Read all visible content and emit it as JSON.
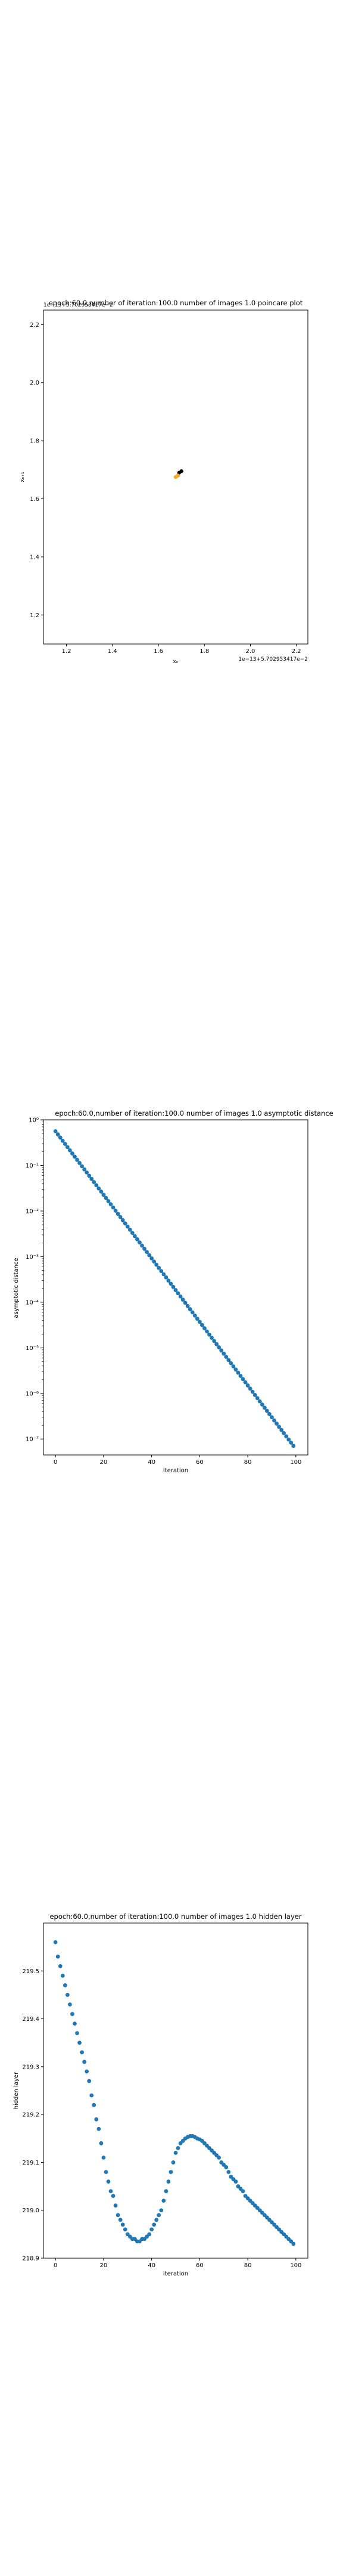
{
  "chart_data": [
    {
      "type": "scatter",
      "title": "epoch:60.0,number of iteration:100.0  number of images 1.0 poincare plot",
      "xlabel": "xₙ",
      "ylabel": "xₙ₊₁",
      "x_offset_text": "1e−13+5.702953417e−2",
      "y_offset_text": "1e−13+5.702953417e−2",
      "xlim": [
        1.1,
        2.25
      ],
      "ylim": [
        1.1,
        2.25
      ],
      "xticks": [
        1.2,
        1.4,
        1.6,
        1.8,
        2.0,
        2.2
      ],
      "yticks": [
        1.2,
        1.4,
        1.6,
        1.8,
        2.0,
        2.2
      ],
      "xtick_labels": [
        "1.2",
        "1.4",
        "1.6",
        "1.8",
        "2.0",
        "2.2"
      ],
      "ytick_labels": [
        "1.2",
        "1.4",
        "1.6",
        "1.8",
        "2.0",
        "2.2"
      ],
      "series": [
        {
          "color": "#000000",
          "x": [
            1.69,
            1.7
          ],
          "y": [
            1.69,
            1.695
          ]
        },
        {
          "color": "#f5a623",
          "x": [
            1.675,
            1.685
          ],
          "y": [
            1.675,
            1.68
          ]
        }
      ]
    },
    {
      "type": "scatter",
      "title": "epoch:60.0,number of iteration:100.0  number of images 1.0 asymptotic distance",
      "xlabel": "iteration",
      "ylabel": "asymptotic distance",
      "yscale": "log",
      "xlim": [
        -5,
        105
      ],
      "ylim_log10": [
        -7.35,
        0.0
      ],
      "xticks": [
        0,
        20,
        40,
        60,
        80,
        100
      ],
      "xtick_labels": [
        "0",
        "20",
        "40",
        "60",
        "80",
        "100"
      ],
      "ytick_exponents": [
        -7,
        -6,
        -5,
        -4,
        -3,
        -2,
        -1,
        0
      ],
      "ytick_labels": [
        "10⁻⁷",
        "10⁻⁶",
        "10⁻⁵",
        "10⁻⁴",
        "10⁻³",
        "10⁻²",
        "10⁻¹",
        "10⁰"
      ],
      "color": "#1f77b4",
      "x_range": [
        0,
        99
      ],
      "log10_y_start": -0.25,
      "log10_y_end": -7.15
    },
    {
      "type": "scatter",
      "title": "epoch:60.0,number of iteration:100.0  number of images 1.0 hidden layer",
      "xlabel": "iteration",
      "ylabel": "hidden layer",
      "xlim": [
        -5,
        105
      ],
      "ylim": [
        218.9,
        219.6
      ],
      "xticks": [
        0,
        20,
        40,
        60,
        80,
        100
      ],
      "xtick_labels": [
        "0",
        "20",
        "40",
        "60",
        "80",
        "100"
      ],
      "yticks": [
        218.9,
        219.0,
        219.1,
        219.2,
        219.3,
        219.4,
        219.5
      ],
      "ytick_labels": [
        "218.9",
        "219.0",
        "219.1",
        "219.2",
        "219.3",
        "219.4",
        "219.5"
      ],
      "color": "#1f77b4",
      "x": [
        0,
        1,
        2,
        3,
        4,
        5,
        6,
        7,
        8,
        9,
        10,
        11,
        12,
        13,
        14,
        15,
        16,
        17,
        18,
        19,
        20,
        21,
        22,
        23,
        24,
        25,
        26,
        27,
        28,
        29,
        30,
        31,
        32,
        33,
        34,
        35,
        36,
        37,
        38,
        39,
        40,
        41,
        42,
        43,
        44,
        45,
        46,
        47,
        48,
        49,
        50,
        51,
        52,
        53,
        54,
        55,
        56,
        57,
        58,
        59,
        60,
        61,
        62,
        63,
        64,
        65,
        66,
        67,
        68,
        69,
        70,
        71,
        72,
        73,
        74,
        75,
        76,
        77,
        78,
        79,
        80,
        81,
        82,
        83,
        84,
        85,
        86,
        87,
        88,
        89,
        90,
        91,
        92,
        93,
        94,
        95,
        96,
        97,
        98,
        99
      ],
      "y": [
        219.56,
        219.53,
        219.51,
        219.49,
        219.47,
        219.45,
        219.43,
        219.41,
        219.39,
        219.37,
        219.35,
        219.33,
        219.31,
        219.29,
        219.27,
        219.24,
        219.22,
        219.19,
        219.17,
        219.14,
        219.11,
        219.08,
        219.06,
        219.04,
        219.03,
        219.01,
        218.99,
        218.98,
        218.97,
        218.96,
        218.95,
        218.945,
        218.94,
        218.94,
        218.935,
        218.935,
        218.94,
        218.94,
        218.945,
        218.95,
        218.96,
        218.97,
        218.98,
        218.99,
        219.0,
        219.02,
        219.04,
        219.06,
        219.08,
        219.1,
        219.12,
        219.13,
        219.14,
        219.145,
        219.15,
        219.153,
        219.155,
        219.155,
        219.153,
        219.15,
        219.148,
        219.145,
        219.14,
        219.135,
        219.13,
        219.125,
        219.12,
        219.115,
        219.11,
        219.1,
        219.095,
        219.09,
        219.08,
        219.07,
        219.065,
        219.06,
        219.05,
        219.045,
        219.04,
        219.03,
        219.025,
        219.02,
        219.015,
        219.01,
        219.005,
        219.0,
        218.995,
        218.99,
        218.985,
        218.98,
        218.975,
        218.97,
        218.965,
        218.96,
        218.955,
        218.95,
        218.945,
        218.94,
        218.935,
        218.93
      ]
    }
  ]
}
